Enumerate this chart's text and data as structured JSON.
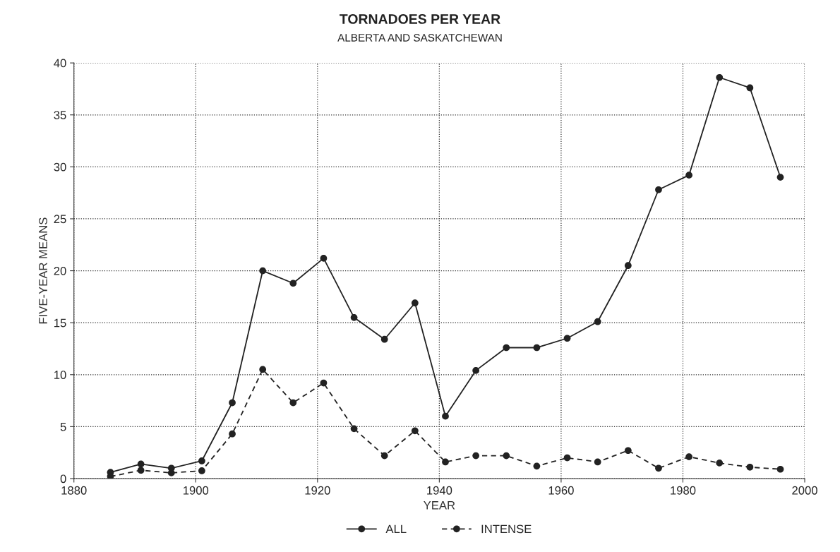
{
  "chart_data": {
    "type": "line",
    "title": "TORNADOES PER YEAR",
    "subtitle": "ALBERTA AND SASKATCHEWAN",
    "xlabel": "YEAR",
    "ylabel": "FIVE-YEAR MEANS",
    "x": [
      1886,
      1891,
      1896,
      1901,
      1906,
      1911,
      1916,
      1921,
      1926,
      1931,
      1936,
      1941,
      1946,
      1951,
      1956,
      1961,
      1966,
      1971,
      1976,
      1981,
      1986,
      1991,
      1996
    ],
    "series": [
      {
        "name": "ALL",
        "color": "#222222",
        "line_style": "solid",
        "values": [
          0.6,
          1.4,
          1.0,
          1.7,
          7.3,
          20.0,
          18.8,
          21.2,
          15.5,
          13.4,
          16.9,
          6.0,
          10.4,
          12.6,
          12.6,
          13.5,
          15.1,
          20.5,
          27.8,
          29.2,
          38.6,
          37.6,
          29.0
        ]
      },
      {
        "name": "INTENSE",
        "color": "#222222",
        "line_style": "dashed",
        "values": [
          0.2,
          0.8,
          0.55,
          0.75,
          4.3,
          10.5,
          7.3,
          9.2,
          4.8,
          2.2,
          4.6,
          1.6,
          2.2,
          2.2,
          1.2,
          2.0,
          1.6,
          2.7,
          1.0,
          2.1,
          1.5,
          1.1,
          0.9
        ]
      }
    ],
    "xlim": [
      1880,
      2000
    ],
    "xticks": [
      1880,
      1900,
      1920,
      1940,
      1960,
      1980,
      2000
    ],
    "ylim": [
      0,
      40
    ],
    "yticks": [
      0,
      5,
      10,
      15,
      20,
      25,
      30,
      35,
      40
    ],
    "grid": true,
    "legend": "bottom",
    "marker": "circle"
  }
}
